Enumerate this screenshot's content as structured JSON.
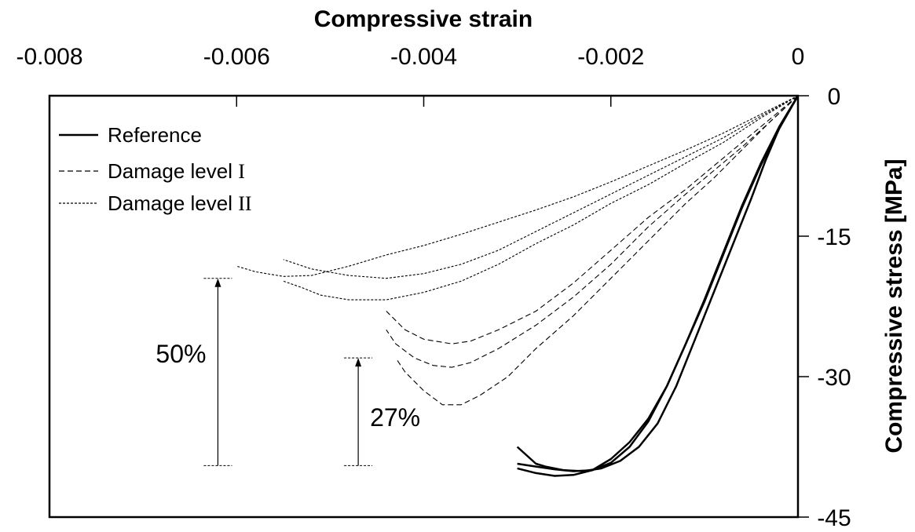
{
  "chart_data": {
    "type": "line",
    "xlabel": "Compressive strain",
    "ylabel": "Compressive stress [MPa]",
    "x_axis_position": "top",
    "y_axis_position": "right",
    "xlim": [
      -0.008,
      0
    ],
    "ylim": [
      -45,
      0
    ],
    "x_ticks": [
      "-0.008",
      "-0.006",
      "-0.004",
      "-0.002",
      "0"
    ],
    "y_ticks": [
      "0",
      "-15",
      "-30",
      "-45"
    ],
    "grid": false,
    "legend_position": "top-left",
    "legend": [
      {
        "label": "Reference",
        "roman": "",
        "style": "solid"
      },
      {
        "label": "Damage level ",
        "roman": "I",
        "style": "dashed"
      },
      {
        "label": "Damage level ",
        "roman": "II",
        "style": "dotted"
      }
    ],
    "series": [
      {
        "name": "Reference",
        "style": "solid",
        "points": [
          [
            0,
            0
          ],
          [
            -0.0002,
            -3.5
          ],
          [
            -0.0004,
            -7.5
          ],
          [
            -0.0006,
            -12
          ],
          [
            -0.0008,
            -17
          ],
          [
            -0.001,
            -22
          ],
          [
            -0.0012,
            -26.5
          ],
          [
            -0.0014,
            -31
          ],
          [
            -0.0016,
            -34.5
          ],
          [
            -0.0018,
            -37
          ],
          [
            -0.002,
            -38.8
          ],
          [
            -0.0022,
            -40
          ],
          [
            -0.0024,
            -40.5
          ],
          [
            -0.0026,
            -40.6
          ],
          [
            -0.0028,
            -40.3
          ],
          [
            -0.003,
            -39.8
          ]
        ]
      },
      {
        "name": "Reference",
        "style": "solid",
        "points": [
          [
            0,
            0
          ],
          [
            -0.00018,
            -3
          ],
          [
            -0.00035,
            -7
          ],
          [
            -0.0005,
            -11
          ],
          [
            -0.0007,
            -16
          ],
          [
            -0.0009,
            -21
          ],
          [
            -0.0011,
            -26
          ],
          [
            -0.0013,
            -31
          ],
          [
            -0.0015,
            -35
          ],
          [
            -0.0017,
            -37.5
          ],
          [
            -0.0019,
            -39
          ],
          [
            -0.0021,
            -39.8
          ],
          [
            -0.0023,
            -40.1
          ],
          [
            -0.0025,
            -40
          ],
          [
            -0.0027,
            -39.6
          ],
          [
            -0.0028,
            -39.3
          ],
          [
            -0.003,
            -37.5
          ]
        ]
      },
      {
        "name": "Reference",
        "style": "solid",
        "points": [
          [
            0,
            0
          ],
          [
            -0.0002,
            -3.3
          ],
          [
            -0.0004,
            -7.3
          ],
          [
            -0.0006,
            -11.8
          ],
          [
            -0.0008,
            -16.8
          ],
          [
            -0.001,
            -21.8
          ],
          [
            -0.0012,
            -26.5
          ],
          [
            -0.0014,
            -31
          ],
          [
            -0.0016,
            -34.8
          ],
          [
            -0.0018,
            -37.5
          ],
          [
            -0.002,
            -39.2
          ],
          [
            -0.0022,
            -40
          ],
          [
            -0.0024,
            -40.1
          ],
          [
            -0.0026,
            -39.9
          ],
          [
            -0.0028,
            -39.6
          ],
          [
            -0.003,
            -39.3
          ]
        ]
      },
      {
        "name": "Damage level I",
        "style": "dashed",
        "points": [
          [
            0,
            0
          ],
          [
            -0.0003,
            -2.8
          ],
          [
            -0.0006,
            -5.5
          ],
          [
            -0.0009,
            -8
          ],
          [
            -0.0012,
            -10.5
          ],
          [
            -0.0016,
            -14
          ],
          [
            -0.002,
            -18
          ],
          [
            -0.0024,
            -21.5
          ],
          [
            -0.0028,
            -24.5
          ],
          [
            -0.0032,
            -27
          ],
          [
            -0.0035,
            -28.5
          ],
          [
            -0.0037,
            -29
          ],
          [
            -0.0039,
            -28.8
          ],
          [
            -0.0041,
            -28
          ],
          [
            -0.0043,
            -26.5
          ],
          [
            -0.0044,
            -25
          ]
        ]
      },
      {
        "name": "Damage level I",
        "style": "dashed",
        "points": [
          [
            0,
            0
          ],
          [
            -0.0003,
            -2.8
          ],
          [
            -0.0006,
            -5.8
          ],
          [
            -0.0009,
            -8.8
          ],
          [
            -0.0012,
            -11.5
          ],
          [
            -0.0016,
            -15.5
          ],
          [
            -0.002,
            -19.5
          ],
          [
            -0.0024,
            -23.5
          ],
          [
            -0.0028,
            -27
          ],
          [
            -0.0031,
            -30
          ],
          [
            -0.0034,
            -32
          ],
          [
            -0.0036,
            -33
          ],
          [
            -0.0038,
            -33
          ],
          [
            -0.004,
            -31.5
          ],
          [
            -0.0042,
            -29.5
          ],
          [
            -0.0043,
            -28
          ]
        ]
      },
      {
        "name": "Damage level I",
        "style": "dashed",
        "points": [
          [
            0,
            0
          ],
          [
            -0.0003,
            -2.5
          ],
          [
            -0.0006,
            -5
          ],
          [
            -0.0009,
            -7.5
          ],
          [
            -0.0012,
            -10
          ],
          [
            -0.0016,
            -13
          ],
          [
            -0.002,
            -16.5
          ],
          [
            -0.0024,
            -20
          ],
          [
            -0.0028,
            -23
          ],
          [
            -0.0032,
            -25
          ],
          [
            -0.0035,
            -26.2
          ],
          [
            -0.0037,
            -26.5
          ],
          [
            -0.004,
            -26
          ],
          [
            -0.0042,
            -25
          ],
          [
            -0.0044,
            -23
          ]
        ]
      },
      {
        "name": "Damage level II",
        "style": "dotted",
        "points": [
          [
            0,
            0
          ],
          [
            -0.0004,
            -2.2
          ],
          [
            -0.0008,
            -4.5
          ],
          [
            -0.0012,
            -6.5
          ],
          [
            -0.0016,
            -8.5
          ],
          [
            -0.002,
            -10.5
          ],
          [
            -0.0024,
            -12.5
          ],
          [
            -0.0028,
            -14.5
          ],
          [
            -0.0032,
            -16.5
          ],
          [
            -0.0036,
            -18
          ],
          [
            -0.004,
            -19
          ],
          [
            -0.0044,
            -19.5
          ],
          [
            -0.0048,
            -19.2
          ],
          [
            -0.0052,
            -18.5
          ],
          [
            -0.0055,
            -17.5
          ]
        ]
      },
      {
        "name": "Damage level II",
        "style": "dotted",
        "points": [
          [
            0,
            0
          ],
          [
            -0.0004,
            -2.4
          ],
          [
            -0.0008,
            -5
          ],
          [
            -0.0012,
            -7.2
          ],
          [
            -0.0016,
            -9.5
          ],
          [
            -0.002,
            -11.5
          ],
          [
            -0.0024,
            -13.8
          ],
          [
            -0.0028,
            -15.8
          ],
          [
            -0.0032,
            -18
          ],
          [
            -0.0036,
            -19.8
          ],
          [
            -0.004,
            -21
          ],
          [
            -0.0044,
            -21.8
          ],
          [
            -0.0048,
            -21.8
          ],
          [
            -0.0051,
            -21.3
          ],
          [
            -0.0053,
            -20.5
          ],
          [
            -0.0055,
            -19.8
          ]
        ]
      },
      {
        "name": "Damage level II",
        "style": "dotted",
        "points": [
          [
            0,
            0
          ],
          [
            -0.0004,
            -2
          ],
          [
            -0.0008,
            -4
          ],
          [
            -0.0012,
            -5.8
          ],
          [
            -0.0016,
            -7.5
          ],
          [
            -0.002,
            -9.2
          ],
          [
            -0.0024,
            -10.8
          ],
          [
            -0.0028,
            -12.2
          ],
          [
            -0.0032,
            -13.5
          ],
          [
            -0.0036,
            -14.8
          ],
          [
            -0.004,
            -16
          ],
          [
            -0.0044,
            -17
          ],
          [
            -0.0048,
            -18.2
          ],
          [
            -0.0052,
            -19.2
          ],
          [
            -0.0055,
            -19.3
          ],
          [
            -0.0058,
            -18.8
          ],
          [
            -0.006,
            -18.2
          ]
        ]
      }
    ],
    "annotations": [
      {
        "label": "50%",
        "x": -0.0062,
        "y_top": -19.5,
        "y_bottom": -39.5
      },
      {
        "label": "27%",
        "x": -0.0047,
        "y_top": -28,
        "y_bottom": -39.5
      }
    ]
  }
}
